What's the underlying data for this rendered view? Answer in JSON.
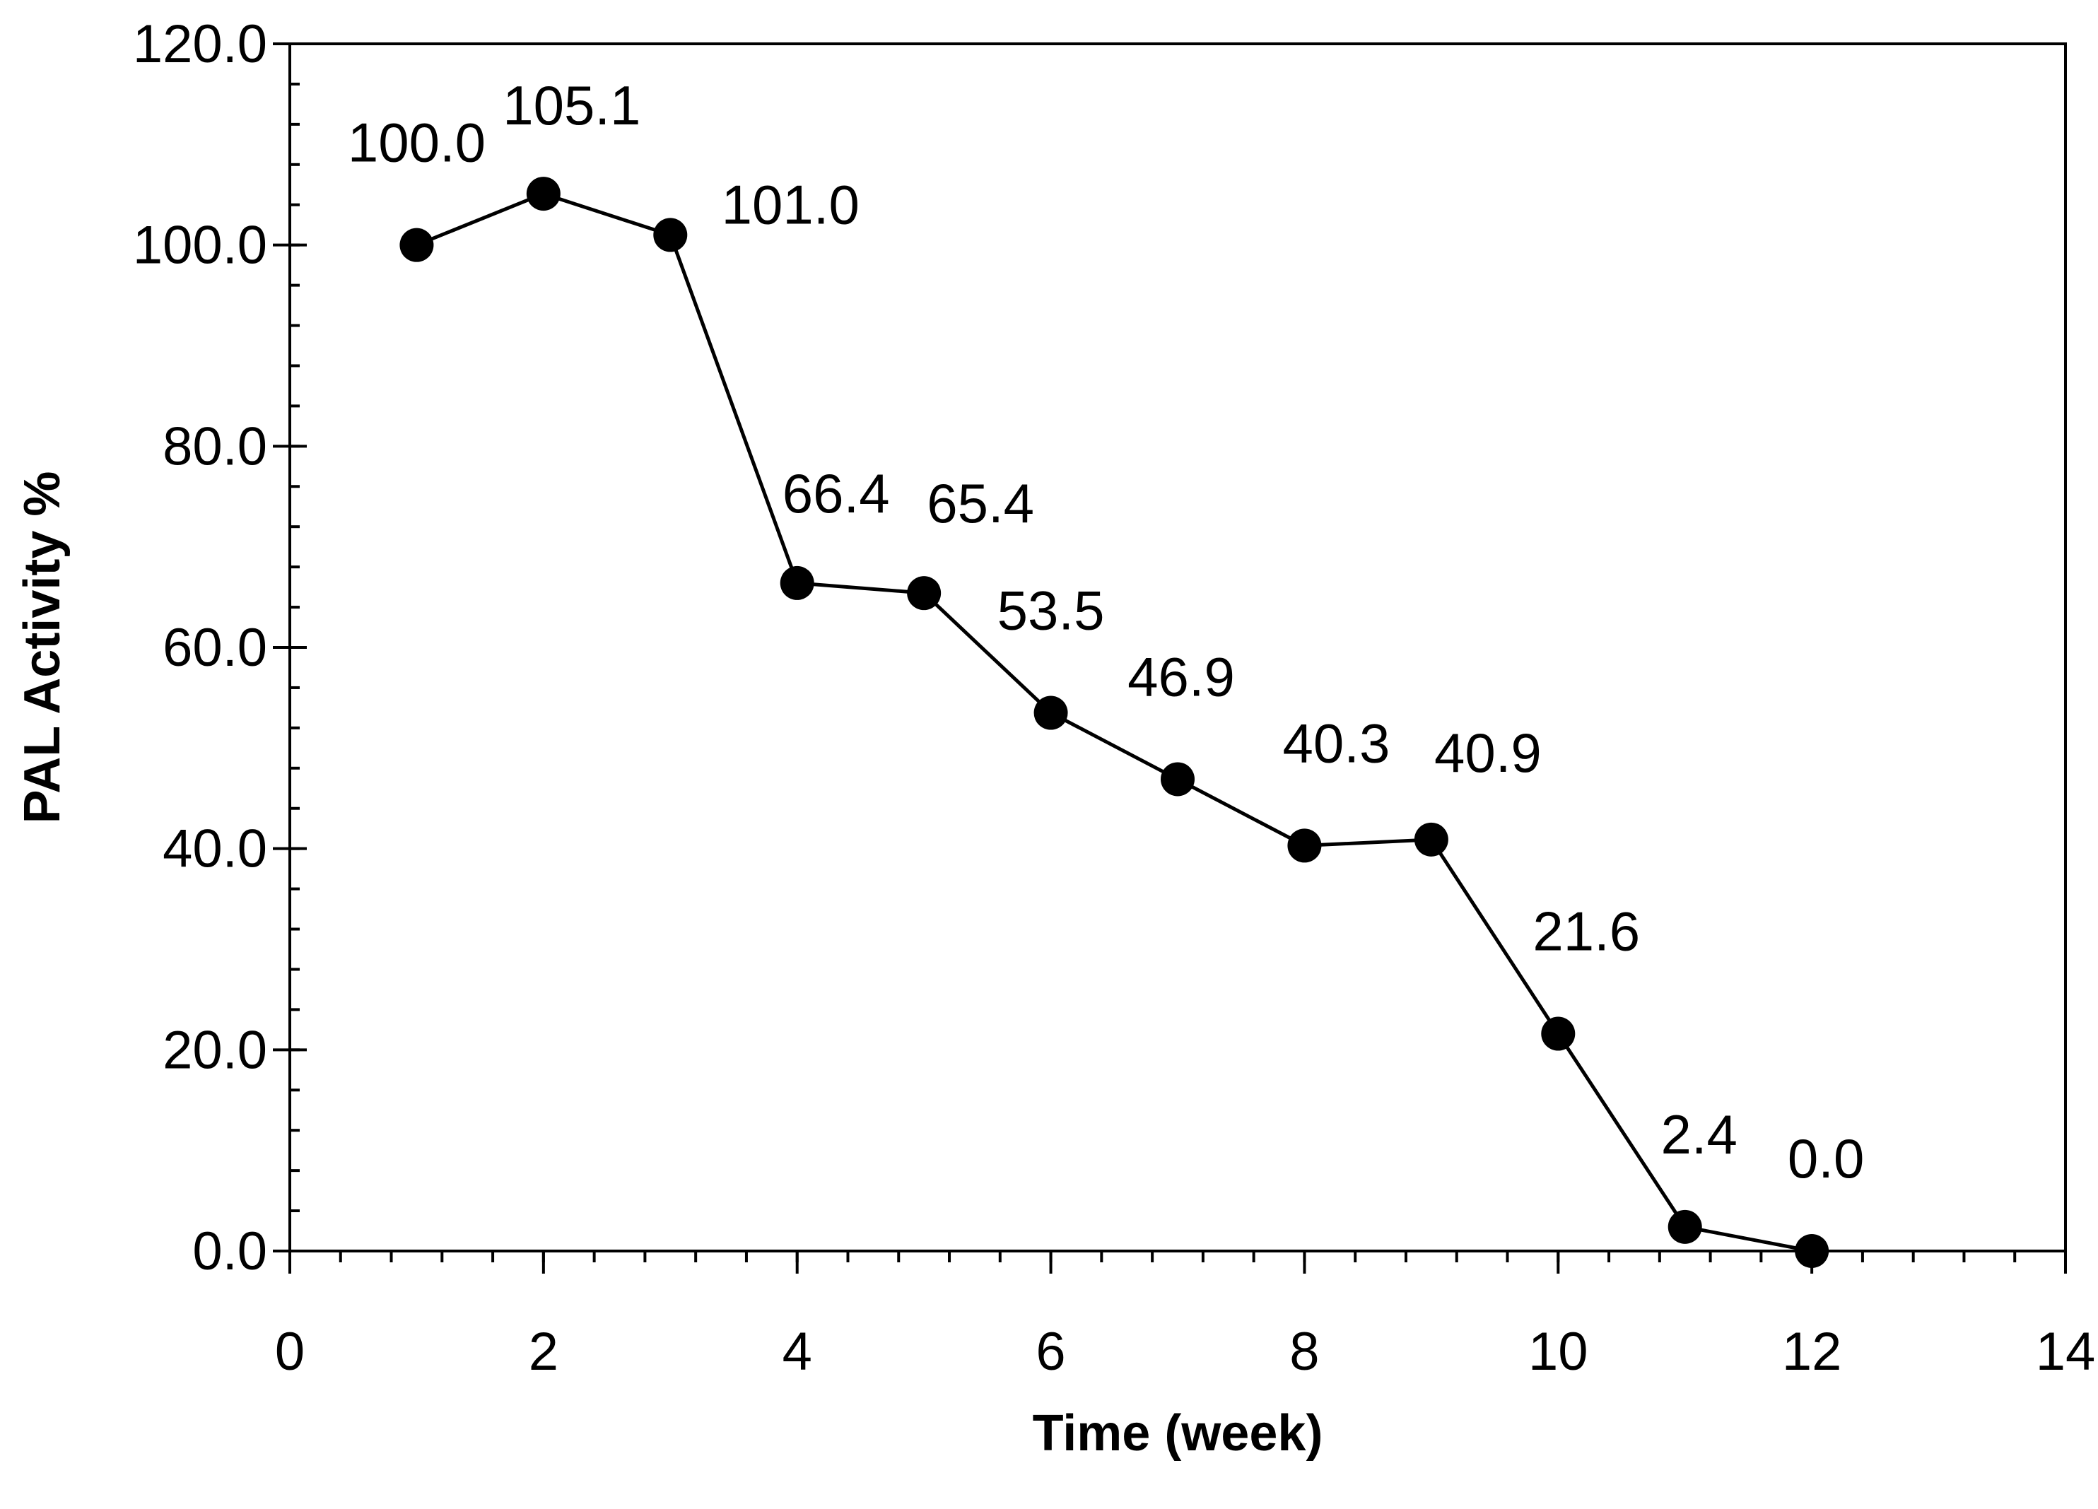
{
  "chart_data": {
    "type": "line",
    "title": "",
    "xlabel": "Time (week)",
    "ylabel": "PAL Activity %",
    "xlim": [
      0,
      14
    ],
    "ylim": [
      0,
      120
    ],
    "x_ticks": [
      0,
      2,
      4,
      6,
      8,
      10,
      12,
      14
    ],
    "x_tick_labels": [
      "0",
      "2",
      "4",
      "6",
      "8",
      "10",
      "12",
      "14"
    ],
    "y_ticks": [
      0,
      20,
      40,
      60,
      80,
      100,
      120
    ],
    "y_tick_labels": [
      "0.0",
      "20.0",
      "40.0",
      "60.0",
      "80.0",
      "100.0",
      "120.0"
    ],
    "x_minor_step": 0.4,
    "y_minor_step": 4,
    "grid": false,
    "legend": "none",
    "series": [
      {
        "x": [
          1,
          2,
          3,
          4,
          5,
          6,
          7,
          8,
          9,
          10,
          11,
          12
        ],
        "values": [
          100.0,
          105.1,
          101.0,
          66.4,
          65.4,
          53.5,
          46.9,
          40.3,
          40.9,
          21.6,
          2.4,
          0.0
        ],
        "data_labels": [
          "100.0",
          "105.1",
          "101.0",
          "66.4",
          "65.4",
          "53.5",
          "46.9",
          "40.3",
          "40.9",
          "21.6",
          "2.4",
          "0.0"
        ],
        "color": "#000000",
        "marker": "circle"
      }
    ]
  }
}
